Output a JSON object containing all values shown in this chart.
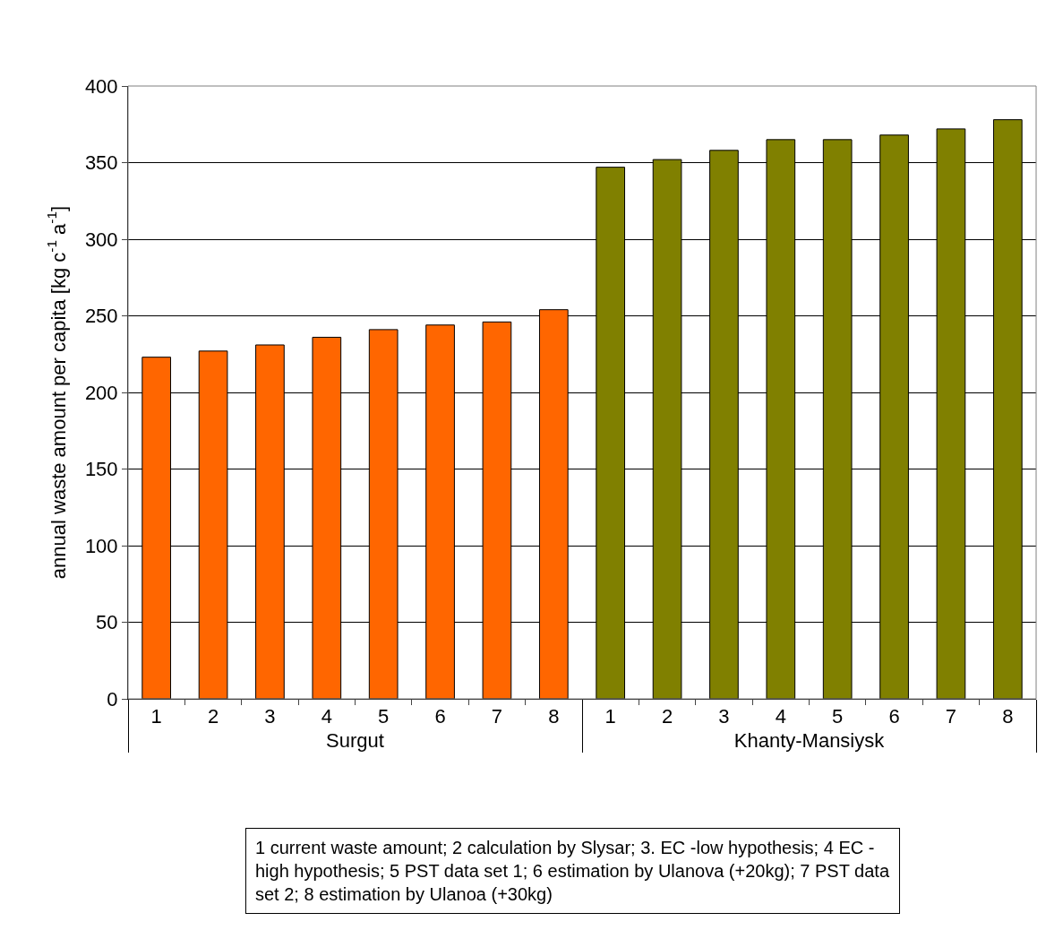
{
  "chart_data": {
    "type": "bar",
    "ylabel": "annual waste amount per capita [kg c$^{-1}$ a$^{-1}$]",
    "categories": [
      "1",
      "2",
      "3",
      "4",
      "5",
      "6",
      "7",
      "8",
      "1",
      "2",
      "3",
      "4",
      "5",
      "6",
      "7",
      "8"
    ],
    "series": [
      {
        "name": "Surgut",
        "color": "#ff6600",
        "values": [
          223,
          227,
          231,
          236,
          241,
          244,
          246,
          254,
          null,
          null,
          null,
          null,
          null,
          null,
          null,
          null
        ]
      },
      {
        "name": "Khanty-Mansiysk",
        "color": "#808000",
        "values": [
          null,
          null,
          null,
          null,
          null,
          null,
          null,
          null,
          347,
          352,
          358,
          365,
          365,
          368,
          372,
          378
        ]
      }
    ],
    "ylim": [
      0,
      400
    ],
    "yticks": [
      0,
      50,
      100,
      150,
      200,
      250,
      300,
      350,
      400
    ],
    "grid": "y",
    "annotations": [
      "1 current waste amount; 2 calculation by Slysar; 3. EC -low hypothesis; 4 EC - high hypothesis; 5 PST data set 1; 6 estimation by Ulanova (+20kg); 7 PST data set 2; 8 estimation by Ulanoa (+30kg)"
    ]
  }
}
